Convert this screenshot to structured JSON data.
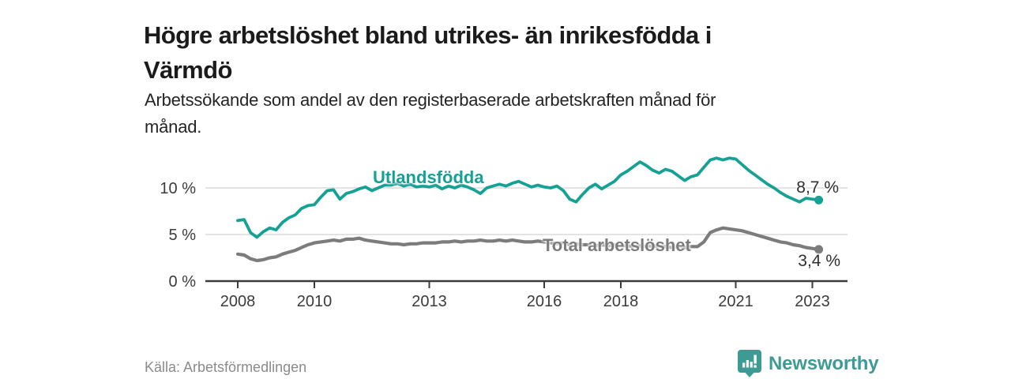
{
  "header": {
    "title": "Högre arbetslöshet bland utrikes- än inrikesfödda i Värmdö",
    "title_lines": [
      "Högre arbetslöshet bland utrikes- än inrikesfödda i",
      "Värmdö"
    ],
    "subtitle": "Arbetssökande som andel av den registerbaserade arbetskraften månad för månad.",
    "subtitle_lines": [
      "Arbetssökande som andel av den registerbaserade arbetskraften månad för",
      "månad."
    ]
  },
  "chart_data": {
    "type": "line",
    "title": "Högre arbetslöshet bland utrikes- än inrikesfödda i Värmdö",
    "subtitle": "Arbetssökande som andel av den registerbaserade arbetskraften månad för månad.",
    "x_unit": "year (monthly data, plotted every 2nd month)",
    "x_start": 2008.0,
    "x_step_years": 0.1666667,
    "x_axis_ticks": [
      {
        "value": 2008,
        "label": "2008"
      },
      {
        "value": 2010,
        "label": "2010"
      },
      {
        "value": 2013,
        "label": "2013"
      },
      {
        "value": 2016,
        "label": "2016"
      },
      {
        "value": 2018,
        "label": "2018"
      },
      {
        "value": 2021,
        "label": "2021"
      },
      {
        "value": 2023,
        "label": "2023"
      }
    ],
    "y_axis_ticks": [
      {
        "value": 0,
        "label": "0 %"
      },
      {
        "value": 5,
        "label": "5 %"
      },
      {
        "value": 10,
        "label": "10 %"
      }
    ],
    "ylim": [
      0,
      13.8
    ],
    "xlim": [
      2007.2,
      2023.9
    ],
    "grid": "horizontal",
    "legend_position": "inline-labels",
    "series": [
      {
        "name": "Utlandsfödda",
        "color": "#16a195",
        "end_label": "8,7 %",
        "end_value": 8.7,
        "values": [
          6.5,
          6.6,
          5.2,
          4.7,
          5.3,
          5.7,
          5.5,
          6.3,
          6.8,
          7.1,
          7.8,
          8.1,
          8.2,
          9.0,
          9.7,
          9.8,
          8.8,
          9.4,
          9.6,
          9.9,
          10.1,
          9.7,
          10.0,
          10.3,
          10.3,
          10.5,
          10.2,
          10.4,
          10.1,
          10.2,
          10.1,
          10.3,
          9.9,
          10.2,
          10.0,
          10.3,
          10.1,
          9.8,
          9.4,
          10.0,
          10.2,
          10.4,
          10.2,
          10.5,
          10.7,
          10.4,
          10.1,
          10.3,
          10.1,
          10.0,
          10.2,
          9.7,
          8.8,
          8.5,
          9.3,
          10.0,
          10.4,
          9.9,
          10.3,
          10.7,
          11.4,
          11.8,
          12.3,
          12.8,
          12.4,
          11.9,
          11.6,
          12.0,
          11.8,
          11.3,
          10.8,
          11.2,
          11.4,
          12.2,
          13.0,
          13.2,
          13.0,
          13.2,
          13.1,
          12.5,
          11.9,
          11.4,
          10.9,
          10.4,
          10.0,
          9.5,
          9.1,
          8.8,
          8.5,
          8.9,
          8.8,
          8.7
        ]
      },
      {
        "name": "Total arbetslöshet",
        "color": "#7c7c7c",
        "end_label": "3,4 %",
        "end_value": 3.4,
        "values": [
          2.9,
          2.8,
          2.4,
          2.2,
          2.3,
          2.5,
          2.6,
          2.9,
          3.1,
          3.3,
          3.6,
          3.9,
          4.1,
          4.2,
          4.3,
          4.4,
          4.3,
          4.5,
          4.5,
          4.6,
          4.4,
          4.3,
          4.2,
          4.1,
          4.0,
          4.0,
          3.9,
          4.0,
          4.0,
          4.1,
          4.1,
          4.1,
          4.2,
          4.2,
          4.3,
          4.2,
          4.3,
          4.3,
          4.4,
          4.3,
          4.3,
          4.4,
          4.3,
          4.4,
          4.3,
          4.2,
          4.2,
          4.3,
          4.2,
          4.1,
          4.0,
          4.1,
          3.9,
          4.0,
          3.9,
          3.9,
          3.8,
          3.9,
          3.8,
          3.9,
          3.8,
          3.8,
          3.7,
          3.8,
          3.7,
          3.8,
          3.7,
          3.7,
          3.6,
          3.7,
          3.6,
          3.7,
          3.7,
          4.2,
          5.2,
          5.5,
          5.7,
          5.6,
          5.5,
          5.4,
          5.2,
          5.0,
          4.8,
          4.6,
          4.4,
          4.2,
          4.1,
          3.9,
          3.8,
          3.6,
          3.5,
          3.4
        ]
      }
    ]
  },
  "colors": {
    "accent_teal": "#16a195",
    "line_gray": "#7c7c7c",
    "grid": "#d2d2d2",
    "axis": "#3b3b3b",
    "tick_text": "#3b3b3b",
    "brand_teal": "#3e9b94"
  },
  "footer": {
    "source": "Källa: Arbetsförmedlingen",
    "brand": "Newsworthy"
  }
}
